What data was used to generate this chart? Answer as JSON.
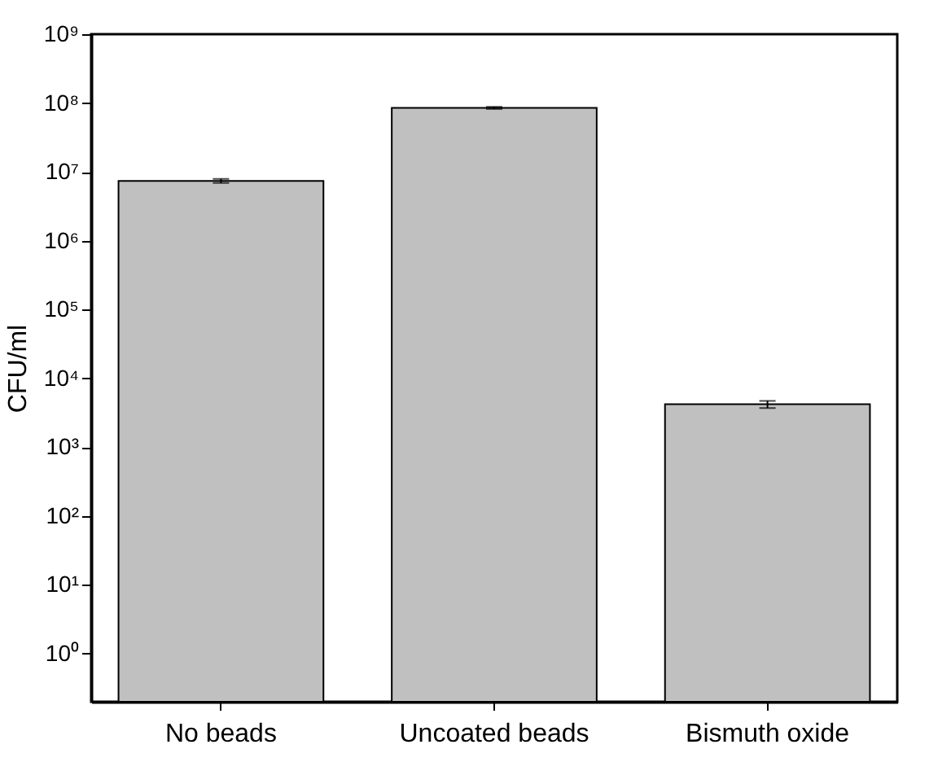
{
  "chart_data": {
    "type": "bar",
    "ylabel": "CFU/ml",
    "categories": [
      "No beads",
      "Uncoated beads",
      "Bismuth oxide"
    ],
    "values": [
      7400000,
      85000000,
      4200
    ],
    "errors": [
      500000,
      3000000,
      500
    ],
    "color": "#c0c0c0",
    "log": true,
    "ylim": [
      0.2,
      1000000000
    ],
    "yticks": [
      {
        "value": 1,
        "label": "10⁰"
      },
      {
        "value": 10,
        "label": "10¹"
      },
      {
        "value": 100,
        "label": "10²"
      },
      {
        "value": 1000,
        "label": "10³"
      },
      {
        "value": 10000,
        "label": "10⁴"
      },
      {
        "value": 100000,
        "label": "10⁵"
      },
      {
        "value": 1000000,
        "label": "10⁶"
      },
      {
        "value": 10000000,
        "label": "10⁷"
      },
      {
        "value": 100000000,
        "label": "10⁸"
      },
      {
        "value": 1000000000,
        "label": "10⁹"
      }
    ],
    "grid": false
  }
}
